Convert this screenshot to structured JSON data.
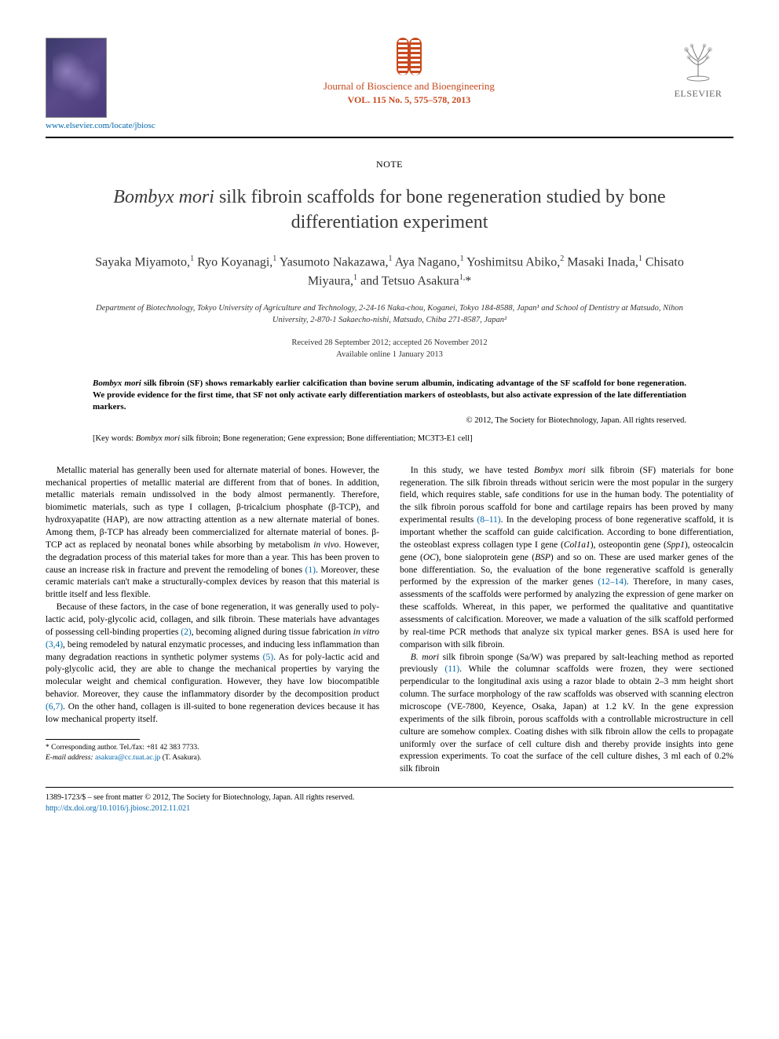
{
  "header": {
    "locate_link": "www.elsevier.com/locate/jbiosc",
    "journal_name": "Journal of Bioscience and Bioengineering",
    "journal_vol": "VOL. 115 No. 5, 575–578, 2013",
    "publisher": "ELSEVIER"
  },
  "article": {
    "type_label": "NOTE",
    "title_ital": "Bombyx mori",
    "title_rest": " silk fibroin scaffolds for bone regeneration studied by bone differentiation experiment",
    "authors_html": "Sayaka Miyamoto,<sup>1</sup> Ryo Koyanagi,<sup>1</sup> Yasumoto Nakazawa,<sup>1</sup> Aya Nagano,<sup>1</sup> Yoshimitsu Abiko,<sup>2</sup> Masaki Inada,<sup>1</sup> Chisato Miyaura,<sup>1</sup> and Tetsuo Asakura<sup>1,</sup>*",
    "affiliations": "Department of Biotechnology, Tokyo University of Agriculture and Technology, 2-24-16 Naka-chou, Koganei, Tokyo 184-8588, Japan¹ and School of Dentistry at Matsudo, Nihon University, 2-870-1 Sakaecho-nishi, Matsudo, Chiba 271-8587, Japan²",
    "received": "Received 28 September 2012; accepted 26 November 2012",
    "online": "Available online 1 January 2013",
    "abstract": "Bombyx mori silk fibroin (SF) shows remarkably earlier calcification than bovine serum albumin, indicating advantage of the SF scaffold for bone regeneration. We provide evidence for the first time, that SF not only activate early differentiation markers of osteoblasts, but also activate expression of the late differentiation markers.",
    "abstract_ital": "Bombyx mori",
    "copyright": "© 2012, The Society for Biotechnology, Japan. All rights reserved.",
    "keywords_label": "[Key words:",
    "keywords_ital": "Bombyx mori",
    "keywords_rest": " silk fibroin; Bone regeneration; Gene expression; Bone differentiation; MC3T3-E1 cell]"
  },
  "body": {
    "p1": "Metallic material has generally been used for alternate material of bones. However, the mechanical properties of metallic material are different from that of bones. In addition, metallic materials remain undissolved in the body almost permanently. Therefore, biomimetic materials, such as type I collagen, β-tricalcium phosphate (β-TCP), and hydroxyapatite (HAP), are now attracting attention as a new alternate material of bones. Among them, β-TCP has already been commercialized for alternate material of bones. β-TCP act as replaced by neonatal bones while absorbing by metabolism in vivo. However, the degradation process of this material takes for more than a year. This has been proven to cause an increase risk in fracture and prevent the remodeling of bones (1). Moreover, these ceramic materials can't make a structurally-complex devices by reason that this material is brittle itself and less flexible.",
    "p2": "Because of these factors, in the case of bone regeneration, it was generally used to poly-lactic acid, poly-glycolic acid, collagen, and silk fibroin. These materials have advantages of possessing cell-binding properties (2), becoming aligned during tissue fabrication in vitro (3,4), being remodeled by natural enzymatic processes, and inducing less inflammation than many degradation reactions in synthetic polymer systems (5). As for poly-lactic acid and poly-glycolic acid, they are able to change the mechanical properties by varying the molecular weight and chemical configuration. However, they have low biocompatible behavior. Moreover, they cause the inflammatory disorder by the decomposition product (6,7). On the other hand, collagen is ill-suited to bone regeneration devices because it has low mechanical property itself.",
    "p3": "In this study, we have tested Bombyx mori silk fibroin (SF) materials for bone regeneration. The silk fibroin threads without sericin were the most popular in the surgery field, which requires stable, safe conditions for use in the human body. The potentiality of the silk fibroin porous scaffold for bone and cartilage repairs has been proved by many experimental results (8–11). In the developing process of bone regenerative scaffold, it is important whether the scaffold can guide calcification. According to bone differentiation, the osteoblast express collagen type I gene (Col1a1), osteopontin gene (Spp1), osteocalcin gene (OC), bone sialoprotein gene (BSP) and so on. These are used marker genes of the bone differentiation. So, the evaluation of the bone regenerative scaffold is generally performed by the expression of the marker genes (12–14). Therefore, in many cases, assessments of the scaffolds were performed by analyzing the expression of gene marker on these scaffolds. Whereat, in this paper, we performed the qualitative and quantitative assessments of calcification. Moreover, we made a valuation of the silk scaffold performed by real-time PCR methods that analyze six typical marker genes. BSA is used here for comparison with silk fibroin.",
    "p4": "B. mori silk fibroin sponge (Sa/W) was prepared by salt-leaching method as reported previously (11). While the columnar scaffolds were frozen, they were sectioned perpendicular to the longitudinal axis using a razor blade to obtain 2–3 mm height short column. The surface morphology of the raw scaffolds was observed with scanning electron microscope (VE-7800, Keyence, Osaka, Japan) at 1.2 kV. In the gene expression experiments of the silk fibroin, porous scaffolds with a controllable microstructure in cell culture are somehow complex. Coating dishes with silk fibroin allow the cells to propagate uniformly over the surface of cell culture dish and thereby provide insights into gene expression experiments. To coat the surface of the cell culture dishes, 3 ml each of 0.2% silk fibroin"
  },
  "footnotes": {
    "corr": "* Corresponding author. Tel./fax: +81 42 383 7733.",
    "email_label": "E-mail address:",
    "email": "asakura@cc.tuat.ac.jp",
    "email_who": "(T. Asakura)."
  },
  "bottom": {
    "line1": "1389-1723/$ – see front matter © 2012, The Society for Biotechnology, Japan. All rights reserved.",
    "doi": "http://dx.doi.org/10.1016/j.jbiosc.2012.11.021"
  },
  "colors": {
    "journal_orange": "#c8491e",
    "link_blue": "#0066aa",
    "elsevier_gray": "#666666"
  }
}
